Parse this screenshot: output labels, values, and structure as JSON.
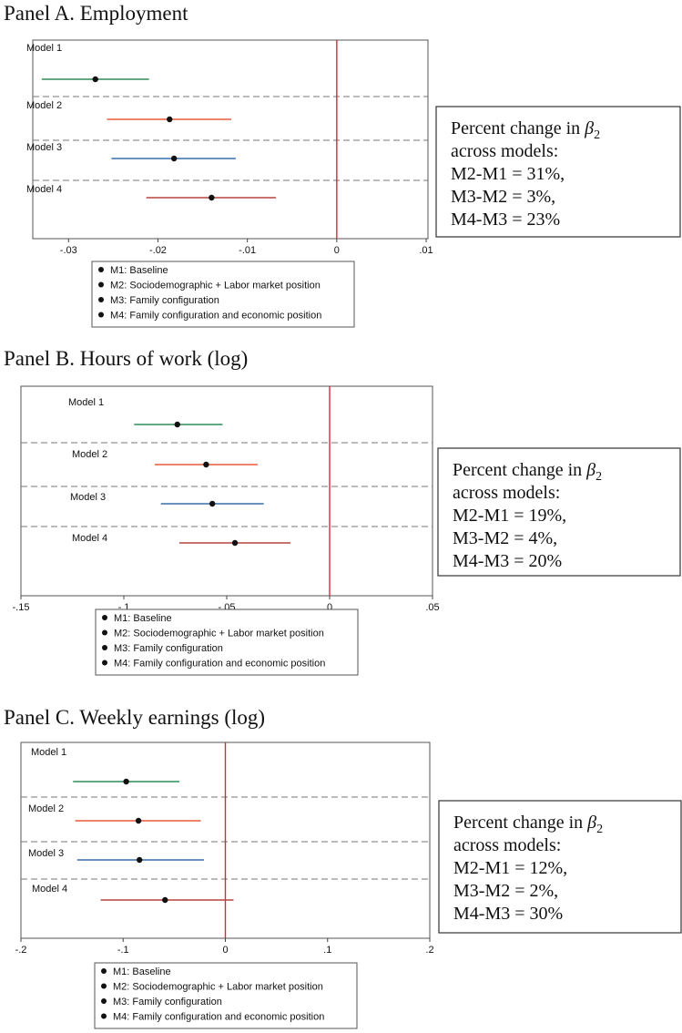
{
  "colors": {
    "m1": "#2e8b57",
    "m2": "#e8583a",
    "m3": "#3a6fa8",
    "m4": "#b5453e",
    "refline": "#d42a3a",
    "point": "#111111",
    "frame": "#555555",
    "divider": "#777777"
  },
  "legend": {
    "items": [
      "M1: Baseline",
      "M2: Sociodemographic + Labor market position",
      "M3: Family configuration",
      "M4: Family configuration and economic position"
    ]
  },
  "chart_data": [
    {
      "type": "coefplot",
      "title": "Panel A. Employment",
      "xlim": [
        -0.034,
        0.0102
      ],
      "ticks": [
        -0.03,
        -0.02,
        -0.01,
        0,
        0.01
      ],
      "tick_labels": [
        "-.03",
        "-.02",
        "-.01",
        "0",
        ".01"
      ],
      "reference_x": 0,
      "series": [
        {
          "name": "Model 1",
          "key": "m1",
          "estimate": -0.027,
          "ci": [
            -0.033,
            -0.021
          ]
        },
        {
          "name": "Model 2",
          "key": "m2",
          "estimate": -0.0187,
          "ci": [
            -0.0257,
            -0.0118
          ]
        },
        {
          "name": "Model 3",
          "key": "m3",
          "estimate": -0.0182,
          "ci": [
            -0.0252,
            -0.0113
          ]
        },
        {
          "name": "Model 4",
          "key": "m4",
          "estimate": -0.014,
          "ci": [
            -0.0213,
            -0.0068
          ]
        }
      ],
      "note": {
        "line1": "Percent change in ",
        "beta": "β",
        "sub": "2",
        "line2": "across models:",
        "rows": [
          "M2-M1 = 31%,",
          "M3-M2 = 3%,",
          "M4-M3 = 23%"
        ]
      }
    },
    {
      "type": "coefplot",
      "title": "Panel B. Hours of work (log)",
      "xlim": [
        -0.15,
        0.05
      ],
      "ticks": [
        -0.15,
        -0.1,
        -0.05,
        0,
        0.05
      ],
      "tick_labels": [
        "-.15",
        "-.1",
        "-.05",
        "0",
        ".05"
      ],
      "reference_x": 0,
      "series": [
        {
          "name": "Model 1",
          "key": "m1",
          "estimate": -0.074,
          "ci": [
            -0.095,
            -0.052
          ]
        },
        {
          "name": "Model 2",
          "key": "m2",
          "estimate": -0.06,
          "ci": [
            -0.085,
            -0.035
          ]
        },
        {
          "name": "Model 3",
          "key": "m3",
          "estimate": -0.057,
          "ci": [
            -0.082,
            -0.032
          ]
        },
        {
          "name": "Model 4",
          "key": "m4",
          "estimate": -0.046,
          "ci": [
            -0.073,
            -0.019
          ]
        }
      ],
      "note": {
        "line1": "Percent change in ",
        "beta": "β",
        "sub": "2",
        "line2": "across models:",
        "rows": [
          "M2-M1 = 19%,",
          "M3-M2 = 4%,",
          "M4-M3 = 20%"
        ]
      }
    },
    {
      "type": "coefplot",
      "title": "Panel C. Weekly earnings (log)",
      "xlim": [
        -0.2,
        0.2
      ],
      "ticks": [
        -0.2,
        -0.1,
        0,
        0.1,
        0.2
      ],
      "tick_labels": [
        "-.2",
        "-.1",
        "0",
        ".1",
        ".2"
      ],
      "reference_x": 0,
      "series": [
        {
          "name": "Model 1",
          "key": "m1",
          "estimate": -0.097,
          "ci": [
            -0.149,
            -0.045
          ]
        },
        {
          "name": "Model 2",
          "key": "m2",
          "estimate": -0.085,
          "ci": [
            -0.147,
            -0.024
          ]
        },
        {
          "name": "Model 3",
          "key": "m3",
          "estimate": -0.084,
          "ci": [
            -0.145,
            -0.021
          ]
        },
        {
          "name": "Model 4",
          "key": "m4",
          "estimate": -0.059,
          "ci": [
            -0.122,
            0.008
          ]
        }
      ],
      "note": {
        "line1": "Percent change in ",
        "beta": "β",
        "sub": "2",
        "line2": "across models:",
        "rows": [
          "M2-M1 = 12%,",
          "M3-M2 = 2%,",
          "M4-M3 = 30%"
        ]
      }
    }
  ]
}
